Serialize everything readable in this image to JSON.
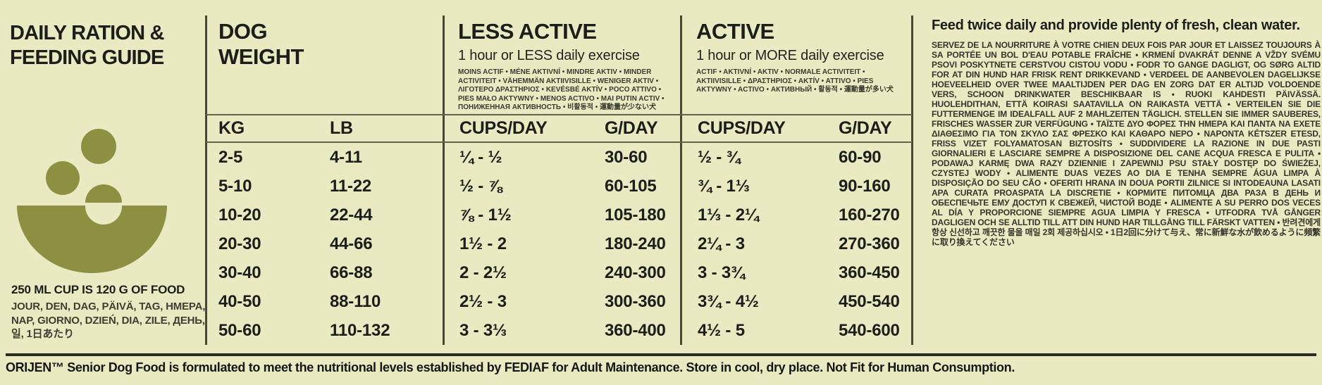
{
  "colors": {
    "background": "#e9eac2",
    "olive": "#8d9040",
    "text": "#1d1d1a",
    "rule": "#2c2c23"
  },
  "left_panel": {
    "title_line1": "DAILY RATION &",
    "title_line2": "FEEDING GUIDE",
    "cup_note": "250 ML CUP IS 120 G OF FOOD",
    "day_words": "JOUR, DEN, DAG, PÄIVÄ, TAG, ΗΜΕΡΑ, NAP, GIORNO, DZIEŃ, DIA, ZILE, ДЕНЬ, 일, 1日あたり"
  },
  "table": {
    "weight_section": {
      "title_line1": "DOG",
      "title_line2": "WEIGHT"
    },
    "less_active_section": {
      "title": "LESS ACTIVE",
      "subtitle": "1 hour or LESS daily exercise",
      "translations": "MOINS ACTIF • MÉNE AKTIVNÍ • MINDRE AKTIV • MINDER ACTIVITEIT • VÄHEMMÄN AKTIIVISILLE • WENIGER AKTIV • ΛΙΓΟΤΕΡΟ ΔΡΑΣΤΗΡΙΟΣ • KEVÉSBÉ AKTÍV • POCO ATTIVO • PIES MAŁO AKTYWNY • MENOS ACTIVO • MAI PUTIN ACTIV • ПОНИЖЕННАЯ АКТИВНОСТЬ • 비활동적 • 運動量が少ない犬"
    },
    "active_section": {
      "title": "ACTIVE",
      "subtitle": "1 hour or MORE daily exercise",
      "translations": "ACTIF • AKTIVNÍ • AKTIV • NORMALE ACTIVITEIT • AKTIIVISILLE • ΔΡΑΣΤΗΡΙΟΣ • AKTÍV • ATTIVO • PIES AKTYWNY • ACTIVO • АКТИВНЫЙ • 활동적 • 運動量が多い犬"
    },
    "columns": [
      "KG",
      "LB",
      "CUPS/DAY",
      "G/DAY",
      "CUPS/DAY",
      "G/DAY"
    ],
    "rows": [
      [
        "2-5",
        "4-11",
        "¼ - ½",
        "30-60",
        "½ - ¾",
        "60-90"
      ],
      [
        "5-10",
        "11-22",
        "½ - ⅞",
        "60-105",
        "¾ - 1⅓",
        "90-160"
      ],
      [
        "10-20",
        "22-44",
        "⅞ - 1½",
        "105-180",
        "1⅓ - 2¼",
        "160-270"
      ],
      [
        "20-30",
        "44-66",
        "1½ - 2",
        "180-240",
        "2¼ - 3",
        "270-360"
      ],
      [
        "30-40",
        "66-88",
        "2 - 2½",
        "240-300",
        "3 - 3¾",
        "360-450"
      ],
      [
        "40-50",
        "88-110",
        "2½ - 3",
        "300-360",
        "3¾ - 4½",
        "450-540"
      ],
      [
        "50-60",
        "110-132",
        "3 - 3⅓",
        "360-400",
        "4½ - 5",
        "540-600"
      ]
    ]
  },
  "right_panel": {
    "title": "Feed twice daily and provide plenty of fresh, clean water.",
    "body": "SERVEZ DE LA NOURRITURE À VOTRE CHIEN DEUX FOIS PAR JOUR ET LAISSEZ TOUJOURS À SA PORTÉE UN BOL D'EAU POTABLE FRAÎCHE • KRMENÍ DVAKRÁT DENNE A VŽDY SVÉMU PSOVI POSKYTNETE CERSTVOU CISTOU VODU • FODR TO GANGE DAGLIGT, OG SØRG ALTID FOR AT DIN HUND HAR FRISK RENT DRIKKEVAND • VERDEEL DE AANBEVOLEN DAGELIJKSE HOEVEELHEID OVER TWEE MAALTIJDEN PER DAG EN ZORG DAT ER ALTIJD VOLDOENDE VERS, SCHOON DRINKWATER BESCHIKBAAR IS • RUOKI KAHDESTI PÄIVÄSSÄ. HUOLEHDITHAN, ETTÄ KOIRASI SAATAVILLA ON RAIKASTA VETTÄ • VERTEILEN SIE DIE FUTTERMENGE IM IDEALFALL AUF 2 MAHLZEITEN TÄGLICH. STELLEN SIE IMMER SAUBERES, FRISCHES WASSER ZUR VERFÜGUNG • ΤΑΪΣΤΕ ΔΥΟ ΦΟΡΕΣ ΤΗΝ ΗΜΕΡΑ ΚΑΙ ΠΑΝΤΑ ΝΑ ΕΧΕΤΕ ΔΙΑΘΕΣΙΜΟ ΓΙΑ ΤΟΝ ΣΚΥΛΟ ΣΑΣ ΦΡΕΣΚΟ ΚΑΙ ΚΑΘΑΡΟ ΝΕΡΟ • NAPONTA KÉTSZER ETESD, FRISS VIZET FOLYAMATOSAN BIZTOSÍTS • SUDDIVIDERE LA RAZIONE IN DUE PASTI GIORNALIERI E LASCIARE SEMPRE A DISPOSIZIONE DEL CANE ACQUA FRESCA E PULITA • PODAWAJ KARMĘ DWA RAZY DZIENNIE I ZAPEWNIJ PSU STAŁY DOSTĘP DO ŚWIEŻEJ, CZYSTEJ WODY • ALIMENTE DUAS VEZES AO DIA E TENHA SEMPRE ÁGUA LIMPA À DISPOSIÇÃO DO SEU CÃO • OFERITI HRANA IN DOUA PORTII ZILNICE SI INTODEAUNA LASATI APA CURATA PROASPATA LA DISCRETIE • КОРМИТЕ ПИТОМЦА ДВА РАЗА В ДЕНЬ И ОБЕСПЕЧЬТЕ ЕМУ ДОСТУП К СВЕЖЕЙ, ЧИСТОЙ ВОДЕ • ALIMENTE A SU PERRO DOS VECES AL DÍA Y PROPORCIONE SIEMPRE AGUA LIMPIA Y FRESCA • UTFODRA TVÅ GÅNGER DAGLIGEN OCH SE ALLTID TILL ATT DIN HUND HAR TILLGÅNG TILL FÄRSKT VATTEN • 반려견에게 항상 신선하고 깨끗한 물을 매일 2회 제공하십시오 • 1日2回に分けて与え、常に新鮮な水が飲めるように頻繁に取り換えてください"
  },
  "footer": {
    "text": "ORIJEN™ Senior Dog Food is formulated to meet the nutritional levels established by FEDIAF for Adult Maintenance. Store in cool, dry place. Not Fit for Human Consumption."
  }
}
